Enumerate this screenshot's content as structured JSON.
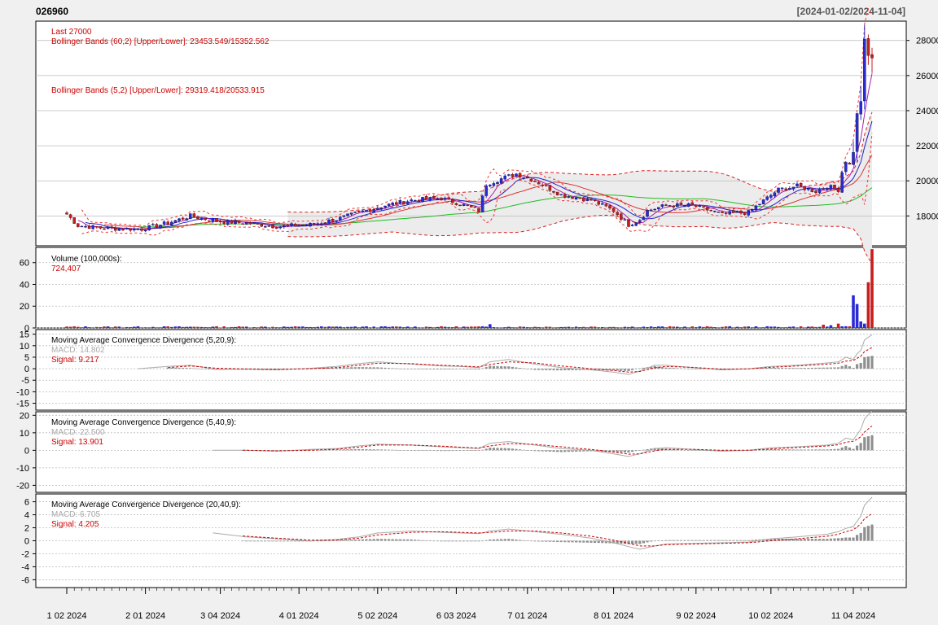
{
  "ticker": "026960",
  "date_range": "[2024-01-02/2024-11-04]",
  "colors": {
    "up": "#2b2bd6",
    "down": "#c81e1e",
    "text_red": "#cc0000",
    "macd_line": "#aaaaaa",
    "band_fill": "#ececec",
    "ma_green": "#22bb22",
    "ma_red": "#dd2222",
    "ma_blue": "#2222cc"
  },
  "chart_data": [
    {
      "type": "candlestick",
      "panel": "price",
      "legend": [
        "Last 27000",
        "Bollinger Bands (60,2) [Upper/Lower]: 23453.549/15352.562",
        "Bollinger Bands (5,2) [Upper/Lower]: 29319.418/20533.915"
      ],
      "y_ticks": [
        "18000",
        "20000",
        "22000",
        "24000",
        "26000",
        "28000"
      ],
      "ylim": [
        16300,
        29100
      ],
      "last": 27000,
      "x_tick_labels": [
        "1 02 2024",
        "2 01 2024",
        "3 04 2024",
        "4 01 2024",
        "5 02 2024",
        "6 03 2024",
        "7 01 2024",
        "8 01 2024",
        "9 02 2024",
        "10 02 2024",
        "11 04 2024"
      ],
      "x_tick_index": [
        0,
        21,
        41,
        62,
        83,
        104,
        123,
        146,
        168,
        188,
        210
      ],
      "close_anchors": [
        [
          0,
          18100
        ],
        [
          3,
          17450
        ],
        [
          10,
          17300
        ],
        [
          20,
          17250
        ],
        [
          27,
          17600
        ],
        [
          33,
          18000
        ],
        [
          40,
          17700
        ],
        [
          48,
          17600
        ],
        [
          56,
          17400
        ],
        [
          65,
          17500
        ],
        [
          72,
          17800
        ],
        [
          78,
          18200
        ],
        [
          85,
          18600
        ],
        [
          92,
          18900
        ],
        [
          100,
          19000
        ],
        [
          105,
          18700
        ],
        [
          110,
          18300
        ],
        [
          112,
          19800
        ],
        [
          117,
          20200
        ],
        [
          120,
          20400
        ],
        [
          125,
          20000
        ],
        [
          132,
          19200
        ],
        [
          140,
          18900
        ],
        [
          146,
          18300
        ],
        [
          150,
          17500
        ],
        [
          153,
          17800
        ],
        [
          155,
          18300
        ],
        [
          160,
          18600
        ],
        [
          167,
          18600
        ],
        [
          175,
          18100
        ],
        [
          182,
          18200
        ],
        [
          185,
          18700
        ],
        [
          190,
          19500
        ],
        [
          195,
          19700
        ],
        [
          200,
          19400
        ],
        [
          203,
          19700
        ],
        [
          206,
          19500
        ],
        [
          208,
          21500
        ],
        [
          209,
          20900
        ],
        [
          210,
          22000
        ],
        [
          211,
          23500
        ],
        [
          212,
          24800
        ],
        [
          213,
          27500
        ],
        [
          214,
          27000
        ]
      ]
    },
    {
      "type": "bar",
      "panel": "volume",
      "title": "Volume (100,000s):",
      "last_label": "724,407",
      "y_ticks": [
        "0",
        "20",
        "40",
        "60"
      ],
      "ylim": [
        0,
        74
      ],
      "spikes": [
        [
          113,
          3.5
        ],
        [
          202,
          3
        ],
        [
          204,
          2.5
        ],
        [
          206,
          4
        ],
        [
          210,
          30
        ],
        [
          211,
          22
        ],
        [
          212,
          6
        ],
        [
          213,
          4
        ],
        [
          214,
          42
        ],
        [
          215,
          72.4
        ],
        [
          216,
          16
        ],
        [
          217,
          7
        ]
      ]
    },
    {
      "type": "line",
      "panel": "macd_1",
      "title": "Moving Average Convergence Divergence (5,20,9):",
      "macd_label": "MACD: 14.802",
      "signal_label": "Signal: 9.217",
      "y_ticks": [
        "15",
        "10",
        "5",
        "0",
        "-5",
        "-10",
        "-15"
      ],
      "ylim": [
        -18,
        17
      ],
      "start_index": 19,
      "macd_anchors": [
        [
          19,
          0
        ],
        [
          27,
          1
        ],
        [
          33,
          1.5
        ],
        [
          40,
          -0.3
        ],
        [
          48,
          -0.2
        ],
        [
          56,
          -0.5
        ],
        [
          65,
          0.2
        ],
        [
          72,
          1
        ],
        [
          78,
          2.2
        ],
        [
          83,
          3
        ],
        [
          92,
          2
        ],
        [
          100,
          1.2
        ],
        [
          105,
          1.0
        ],
        [
          110,
          0.5
        ],
        [
          113,
          3
        ],
        [
          118,
          4
        ],
        [
          125,
          2
        ],
        [
          132,
          0.5
        ],
        [
          140,
          -0.5
        ],
        [
          146,
          -1.5
        ],
        [
          150,
          -2.5
        ],
        [
          153,
          -1
        ],
        [
          157,
          1.5
        ],
        [
          160,
          1.5
        ],
        [
          167,
          0.5
        ],
        [
          175,
          -0.5
        ],
        [
          182,
          0
        ],
        [
          188,
          1
        ],
        [
          195,
          1.5
        ],
        [
          203,
          2.5
        ],
        [
          206,
          3
        ],
        [
          208,
          5
        ],
        [
          210,
          4
        ],
        [
          211,
          6.5
        ],
        [
          212,
          8
        ],
        [
          213,
          12.5
        ],
        [
          215,
          14.8
        ]
      ],
      "signal_anchors": [
        [
          19,
          0
        ],
        [
          27,
          0.5
        ],
        [
          33,
          1.2
        ],
        [
          40,
          0.2
        ],
        [
          48,
          -0.1
        ],
        [
          56,
          -0.3
        ],
        [
          65,
          0
        ],
        [
          72,
          0.5
        ],
        [
          78,
          1.5
        ],
        [
          83,
          2.4
        ],
        [
          92,
          2.2
        ],
        [
          100,
          1.5
        ],
        [
          105,
          1.2
        ],
        [
          110,
          0.8
        ],
        [
          113,
          1.8
        ],
        [
          118,
          3
        ],
        [
          125,
          2.5
        ],
        [
          132,
          1.2
        ],
        [
          140,
          0
        ],
        [
          146,
          -0.8
        ],
        [
          150,
          -1.5
        ],
        [
          153,
          -1.2
        ],
        [
          157,
          0.4
        ],
        [
          160,
          1
        ],
        [
          167,
          0.6
        ],
        [
          175,
          -0.2
        ],
        [
          182,
          -0.1
        ],
        [
          188,
          0.6
        ],
        [
          195,
          1.2
        ],
        [
          203,
          2
        ],
        [
          206,
          2.4
        ],
        [
          208,
          3.3
        ],
        [
          210,
          3.6
        ],
        [
          211,
          4.5
        ],
        [
          212,
          5.5
        ],
        [
          213,
          7.5
        ],
        [
          215,
          9.2
        ]
      ]
    },
    {
      "type": "line",
      "panel": "macd_2",
      "title": "Moving Average Convergence Divergence (5,40,9):",
      "macd_label": "MACD: 22.500",
      "signal_label": "Signal: 13.901",
      "y_ticks": [
        "20",
        "10",
        "0",
        "-10",
        "-20"
      ],
      "ylim": [
        -24,
        22
      ],
      "start_index": 39,
      "macd_anchors": [
        [
          39,
          0
        ],
        [
          48,
          0
        ],
        [
          56,
          -0.5
        ],
        [
          65,
          0.5
        ],
        [
          72,
          1
        ],
        [
          78,
          2.5
        ],
        [
          83,
          3.5
        ],
        [
          92,
          3
        ],
        [
          100,
          2
        ],
        [
          105,
          1.5
        ],
        [
          110,
          1
        ],
        [
          113,
          4
        ],
        [
          118,
          5
        ],
        [
          125,
          3
        ],
        [
          132,
          1
        ],
        [
          140,
          0
        ],
        [
          146,
          -2
        ],
        [
          150,
          -3.5
        ],
        [
          153,
          -2
        ],
        [
          157,
          1
        ],
        [
          160,
          1.5
        ],
        [
          167,
          0.5
        ],
        [
          175,
          -0.5
        ],
        [
          182,
          0
        ],
        [
          188,
          1.5
        ],
        [
          195,
          2
        ],
        [
          203,
          3
        ],
        [
          206,
          4
        ],
        [
          208,
          7
        ],
        [
          210,
          6
        ],
        [
          211,
          9
        ],
        [
          212,
          12
        ],
        [
          213,
          18
        ],
        [
          215,
          22.5
        ]
      ],
      "signal_anchors": [
        [
          39,
          0
        ],
        [
          48,
          0
        ],
        [
          56,
          -0.3
        ],
        [
          65,
          0
        ],
        [
          72,
          0.6
        ],
        [
          78,
          1.8
        ],
        [
          83,
          3
        ],
        [
          92,
          3
        ],
        [
          100,
          2.4
        ],
        [
          105,
          1.8
        ],
        [
          110,
          1.3
        ],
        [
          113,
          2.5
        ],
        [
          118,
          3.8
        ],
        [
          125,
          3.4
        ],
        [
          132,
          2
        ],
        [
          140,
          0.5
        ],
        [
          146,
          -1
        ],
        [
          150,
          -2.2
        ],
        [
          153,
          -2
        ],
        [
          157,
          -0.3
        ],
        [
          160,
          0.6
        ],
        [
          167,
          0.6
        ],
        [
          175,
          0
        ],
        [
          182,
          0
        ],
        [
          188,
          0.8
        ],
        [
          195,
          1.6
        ],
        [
          203,
          2.5
        ],
        [
          206,
          3.2
        ],
        [
          208,
          4.6
        ],
        [
          210,
          5.2
        ],
        [
          211,
          6.3
        ],
        [
          212,
          7.8
        ],
        [
          213,
          10.5
        ],
        [
          215,
          13.9
        ]
      ]
    },
    {
      "type": "line",
      "panel": "macd_3",
      "title": "Moving Average Convergence Divergence (20,40,9):",
      "macd_label": "MACD: 6.705",
      "signal_label": "Signal: 4.205",
      "y_ticks": [
        "6",
        "4",
        "2",
        "0",
        "-2",
        "-4",
        "-6"
      ],
      "ylim": [
        -7.2,
        7.2
      ],
      "start_index": 39,
      "macd_anchors": [
        [
          39,
          1.2
        ],
        [
          48,
          0.6
        ],
        [
          56,
          0.3
        ],
        [
          65,
          0
        ],
        [
          72,
          0.2
        ],
        [
          78,
          0.6
        ],
        [
          83,
          1.2
        ],
        [
          92,
          1.5
        ],
        [
          100,
          1.3
        ],
        [
          105,
          1.2
        ],
        [
          110,
          1.1
        ],
        [
          113,
          1.5
        ],
        [
          118,
          1.8
        ],
        [
          125,
          1.4
        ],
        [
          132,
          1
        ],
        [
          140,
          0.4
        ],
        [
          146,
          -0.3
        ],
        [
          150,
          -0.9
        ],
        [
          153,
          -1.3
        ],
        [
          157,
          -0.8
        ],
        [
          160,
          -0.5
        ],
        [
          167,
          -0.4
        ],
        [
          175,
          -0.3
        ],
        [
          182,
          -0.2
        ],
        [
          188,
          0.3
        ],
        [
          195,
          0.6
        ],
        [
          203,
          1.0
        ],
        [
          206,
          1.4
        ],
        [
          208,
          1.9
        ],
        [
          210,
          2.2
        ],
        [
          211,
          3
        ],
        [
          212,
          3.8
        ],
        [
          213,
          5.5
        ],
        [
          215,
          6.7
        ]
      ],
      "signal_anchors": [
        [
          39,
          1
        ],
        [
          48,
          0.7
        ],
        [
          56,
          0.4
        ],
        [
          65,
          0.1
        ],
        [
          72,
          0.1
        ],
        [
          78,
          0.4
        ],
        [
          83,
          0.9
        ],
        [
          92,
          1.3
        ],
        [
          100,
          1.4
        ],
        [
          105,
          1.3
        ],
        [
          110,
          1.2
        ],
        [
          113,
          1.3
        ],
        [
          118,
          1.5
        ],
        [
          125,
          1.5
        ],
        [
          132,
          1.2
        ],
        [
          140,
          0.7
        ],
        [
          146,
          0.1
        ],
        [
          150,
          -0.4
        ],
        [
          153,
          -0.8
        ],
        [
          157,
          -0.8
        ],
        [
          160,
          -0.6
        ],
        [
          167,
          -0.5
        ],
        [
          175,
          -0.4
        ],
        [
          182,
          -0.3
        ],
        [
          188,
          0
        ],
        [
          195,
          0.3
        ],
        [
          203,
          0.7
        ],
        [
          206,
          1
        ],
        [
          208,
          1.4
        ],
        [
          210,
          1.7
        ],
        [
          211,
          2.1
        ],
        [
          212,
          2.6
        ],
        [
          213,
          3.4
        ],
        [
          215,
          4.2
        ]
      ]
    }
  ]
}
